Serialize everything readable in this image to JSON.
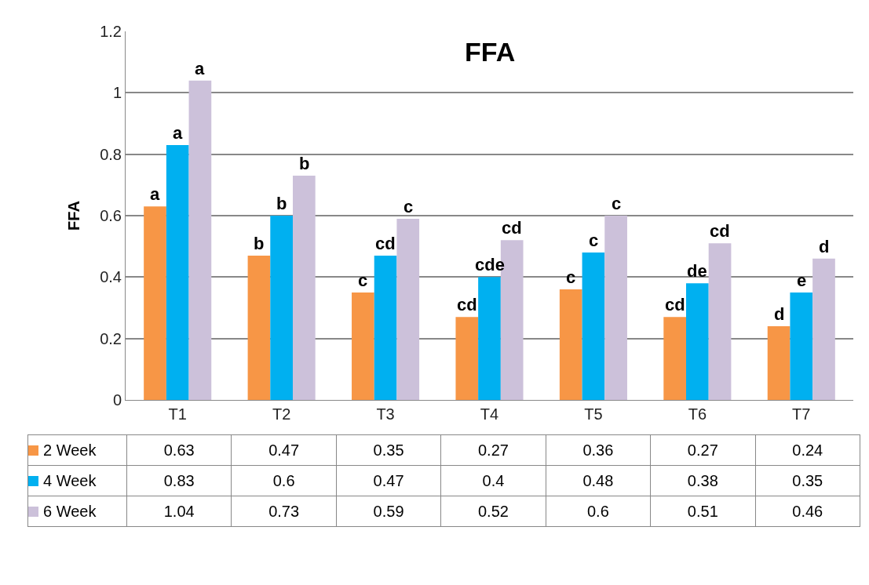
{
  "chart_data": {
    "type": "bar",
    "title": "FFA",
    "ylabel": "FFA",
    "categories": [
      "T1",
      "T2",
      "T3",
      "T4",
      "T5",
      "T6",
      "T7"
    ],
    "series": [
      {
        "name": "2 Week",
        "color": "#f79646",
        "values": [
          0.63,
          0.47,
          0.35,
          0.27,
          0.36,
          0.27,
          0.24
        ]
      },
      {
        "name": "4 Week",
        "color": "#00b0f0",
        "values": [
          0.83,
          0.6,
          0.47,
          0.4,
          0.48,
          0.38,
          0.35
        ]
      },
      {
        "name": "6 Week",
        "color": "#ccc1da",
        "values": [
          1.04,
          0.73,
          0.59,
          0.52,
          0.6,
          0.51,
          0.46
        ]
      }
    ],
    "ylim": [
      0,
      1.2
    ],
    "yticks": [
      0,
      0.2,
      0.4,
      0.6,
      0.8,
      1,
      1.2
    ],
    "grid": "y",
    "data_labels": true,
    "legend": "bottom left",
    "annotations": [
      "a",
      "a",
      "a",
      "b",
      "b",
      "b",
      "c",
      "cd",
      "c",
      "cd",
      "cde",
      "cd",
      "c",
      "c",
      "c",
      "cd",
      "de",
      "cd",
      "d",
      "e",
      "d"
    ]
  }
}
